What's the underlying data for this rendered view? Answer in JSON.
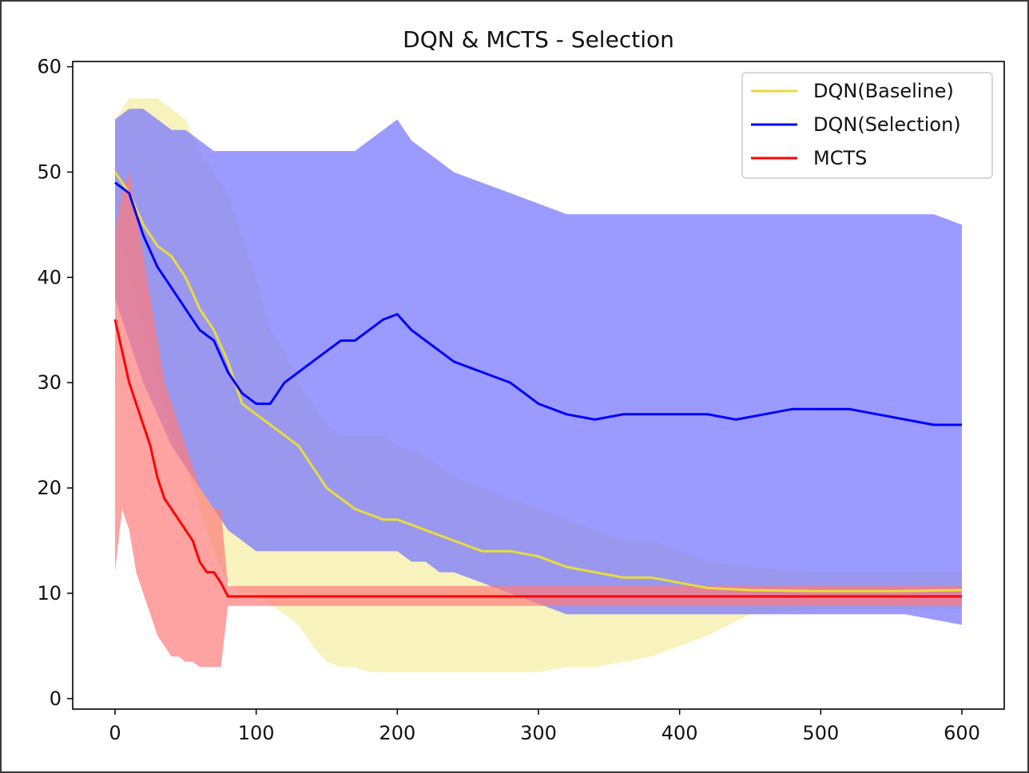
{
  "chart_data": {
    "type": "line",
    "title": "DQN & MCTS - Selection",
    "xlabel": "",
    "ylabel": "",
    "xlim": [
      -30,
      630
    ],
    "ylim": [
      -1,
      60.5
    ],
    "xticks": [
      0,
      100,
      200,
      300,
      400,
      500,
      600
    ],
    "yticks": [
      0,
      10,
      20,
      30,
      40,
      50,
      60
    ],
    "legend_position": "top-right",
    "colors": {
      "baseline": "#e8dc3c",
      "selection": "#0000ff",
      "mcts": "#ff0000",
      "baseline_band": "#f5efa6",
      "selection_band": "#7a7aff",
      "mcts_band": "#ff7b7b"
    },
    "series": [
      {
        "name": "DQN(Baseline)",
        "color": "#e8dc3c",
        "x": [
          0,
          10,
          20,
          30,
          40,
          50,
          60,
          70,
          80,
          90,
          100,
          110,
          120,
          130,
          140,
          150,
          160,
          170,
          180,
          190,
          200,
          220,
          240,
          260,
          280,
          300,
          320,
          340,
          360,
          380,
          400,
          420,
          450,
          500,
          550,
          600
        ],
        "y": [
          50,
          48,
          45,
          43,
          42,
          40,
          37,
          35,
          32,
          28,
          27,
          26,
          25,
          24,
          22,
          20,
          19,
          18,
          17.5,
          17,
          17,
          16,
          15,
          14,
          14,
          13.5,
          12.5,
          12,
          11.5,
          11.5,
          11,
          10.5,
          10.3,
          10.2,
          10.2,
          10.3
        ],
        "band_upper": [
          55,
          57,
          57,
          57,
          56,
          55,
          52,
          50,
          48,
          44,
          40,
          35,
          33,
          30,
          28,
          26,
          25,
          25,
          25,
          25,
          24,
          23,
          21,
          20,
          19,
          18,
          17,
          16,
          15,
          15,
          14,
          13,
          12.5,
          12,
          12,
          12
        ],
        "band_lower": [
          45,
          40,
          35,
          30,
          25,
          22,
          18,
          14,
          11,
          10,
          10,
          9,
          8,
          7,
          5,
          3.5,
          3,
          3,
          2.5,
          2.5,
          2.5,
          2.5,
          2.5,
          2.5,
          2.5,
          2.5,
          3,
          3,
          3.5,
          4,
          5,
          6,
          8,
          8.5,
          8.5,
          8.5
        ]
      },
      {
        "name": "DQN(Selection)",
        "color": "#0000ff",
        "x": [
          0,
          10,
          20,
          30,
          40,
          50,
          60,
          70,
          80,
          90,
          100,
          110,
          120,
          130,
          140,
          150,
          160,
          170,
          180,
          190,
          200,
          210,
          220,
          230,
          240,
          260,
          280,
          300,
          320,
          340,
          360,
          380,
          400,
          420,
          440,
          460,
          480,
          500,
          520,
          540,
          560,
          580,
          600
        ],
        "y": [
          49,
          48,
          44,
          41,
          39,
          37,
          35,
          34,
          31,
          29,
          28,
          28,
          30,
          31,
          32,
          33,
          34,
          34,
          35,
          36,
          36.5,
          35,
          34,
          33,
          32,
          31,
          30,
          28,
          27,
          26.5,
          27,
          27,
          27,
          27,
          26.5,
          27,
          27.5,
          27.5,
          27.5,
          27,
          26.5,
          26,
          26
        ],
        "band_upper": [
          55,
          56,
          56,
          55,
          54,
          54,
          53,
          52,
          52,
          52,
          52,
          52,
          52,
          52,
          52,
          52,
          52,
          52,
          53,
          54,
          55,
          53,
          52,
          51,
          50,
          49,
          48,
          47,
          46,
          46,
          46,
          46,
          46,
          46,
          46,
          46,
          46,
          46,
          46,
          46,
          46,
          46,
          45
        ],
        "band_lower": [
          38,
          34,
          30,
          27,
          24,
          22,
          20,
          18,
          16,
          15,
          14,
          14,
          14,
          14,
          14,
          14,
          14,
          14,
          14,
          14,
          14,
          13,
          13,
          12,
          12,
          11,
          10,
          9,
          8,
          8,
          8,
          8,
          8,
          8,
          8,
          8,
          8,
          8,
          8,
          8,
          8,
          7.5,
          7
        ]
      },
      {
        "name": "MCTS",
        "color": "#ff0000",
        "x": [
          0,
          5,
          10,
          15,
          20,
          25,
          30,
          35,
          40,
          45,
          50,
          55,
          60,
          65,
          70,
          75,
          80,
          100,
          200,
          300,
          400,
          500,
          600
        ],
        "y": [
          36,
          33,
          30,
          28,
          26,
          24,
          21,
          19,
          18,
          17,
          16,
          15,
          13,
          12,
          12,
          11,
          9.7,
          9.7,
          9.7,
          9.7,
          9.7,
          9.7,
          9.7
        ],
        "band_upper": [
          44,
          48,
          50,
          46,
          42,
          38,
          34,
          30,
          28,
          26,
          24,
          22,
          20,
          19,
          18,
          18,
          10.7,
          10.7,
          10.7,
          10.7,
          10.7,
          10.7,
          10.7
        ],
        "band_lower": [
          12,
          18,
          16,
          12,
          10,
          8,
          6,
          5,
          4,
          4,
          3.5,
          3.5,
          3,
          3,
          3,
          3,
          8.8,
          8.8,
          8.8,
          8.8,
          8.8,
          8.8,
          8.8
        ]
      }
    ]
  }
}
